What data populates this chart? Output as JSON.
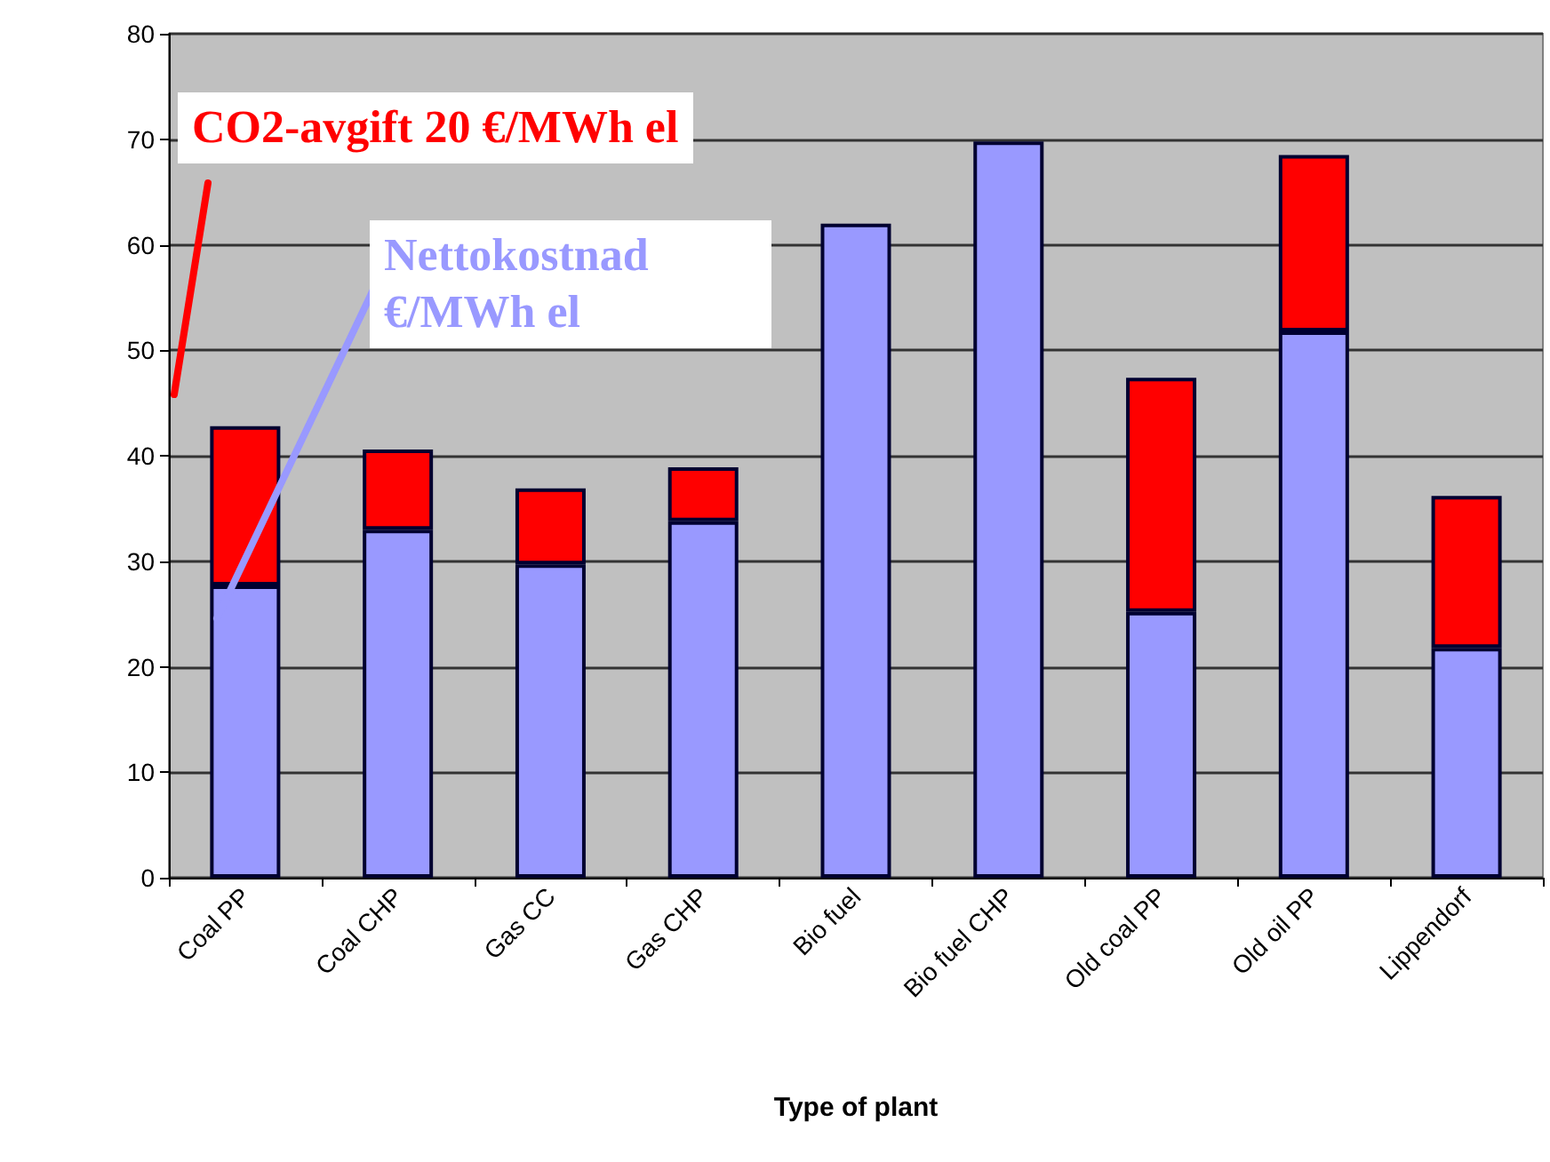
{
  "chart_data": {
    "type": "bar",
    "stacked": true,
    "xlabel": "Type of plant",
    "categories": [
      "Coal PP",
      "Coal CHP",
      "Gas CC",
      "Gas CHP",
      "Bio fuel",
      "Bio fuel CHP",
      "Old coal PP",
      "Old oil PP",
      "Lippendorf"
    ],
    "series": [
      {
        "name": "Nettokostnad €/MWh el",
        "color": "#9999ff",
        "values": [
          27.7,
          33,
          29.7,
          33.8,
          62,
          69.8,
          25.2,
          51.8,
          21.8
        ]
      },
      {
        "name": "CO2-avgift 20 €/MWh el",
        "color": "#ff0000",
        "values": [
          15.1,
          7.6,
          7.2,
          5.1,
          null,
          null,
          22.2,
          16.7,
          14.4
        ]
      }
    ],
    "ylim": [
      0,
      80
    ],
    "yticks": [
      0,
      10,
      20,
      30,
      40,
      50,
      60,
      70,
      80
    ],
    "grid": "y",
    "legend": false
  }
}
